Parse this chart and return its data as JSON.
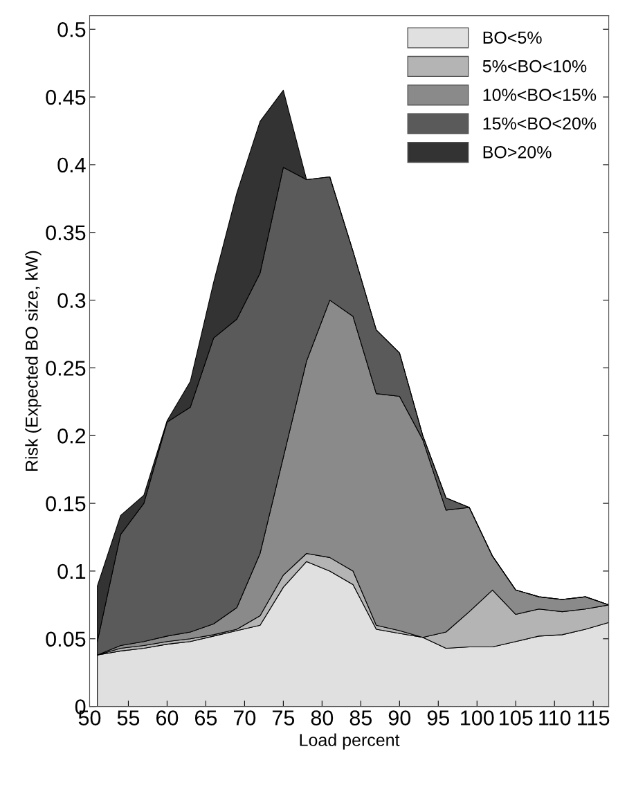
{
  "chart_data": {
    "type": "area",
    "stacked": true,
    "xlabel": "Load percent",
    "ylabel": "Risk (Expected BO size, kW)",
    "x": [
      51,
      54,
      57,
      60,
      63,
      66,
      69,
      72,
      75,
      78,
      81,
      84,
      87,
      90,
      93,
      96,
      99,
      102,
      105,
      108,
      111,
      114,
      117
    ],
    "series": [
      {
        "name": "BO<5%",
        "color": "#e0e0e0",
        "values": [
          0.038,
          0.041,
          0.043,
          0.046,
          0.048,
          0.052,
          0.056,
          0.06,
          0.088,
          0.107,
          0.1,
          0.09,
          0.057,
          0.054,
          0.051,
          0.043,
          0.044,
          0.044,
          0.048,
          0.052,
          0.053,
          0.057,
          0.062
        ]
      },
      {
        "name": "5%<BO<10%",
        "color": "#b4b4b4",
        "values": [
          0,
          0.002,
          0.002,
          0.002,
          0.002,
          0.001,
          0.001,
          0.007,
          0.009,
          0.006,
          0.01,
          0.01,
          0.003,
          0.002,
          0,
          0.012,
          0.026,
          0.042,
          0.02,
          0.02,
          0.017,
          0.015,
          0.013
        ]
      },
      {
        "name": "10%<BO<15%",
        "color": "#8a8a8a",
        "values": [
          0,
          0.002,
          0.003,
          0.004,
          0.005,
          0.008,
          0.016,
          0.046,
          0.087,
          0.142,
          0.19,
          0.188,
          0.171,
          0.173,
          0.146,
          0.09,
          0.077,
          0.025,
          0.018,
          0.009,
          0.009,
          0.009,
          0
        ]
      },
      {
        "name": "15%<BO<20%",
        "color": "#5a5a5a",
        "values": [
          0.01,
          0.082,
          0.102,
          0.158,
          0.166,
          0.211,
          0.213,
          0.207,
          0.214,
          0.134,
          0.091,
          0.048,
          0.047,
          0.032,
          0.003,
          0.009,
          0,
          0,
          0,
          0,
          0,
          0,
          0
        ]
      },
      {
        "name": "BO>20%",
        "color": "#333333",
        "values": [
          0.041,
          0.014,
          0.006,
          0.001,
          0.019,
          0.041,
          0.093,
          0.112,
          0.057,
          0,
          0,
          0,
          0,
          0,
          0,
          0,
          0,
          0,
          0,
          0,
          0,
          0,
          0
        ]
      }
    ],
    "xlim": [
      50,
      117
    ],
    "xticks": [
      50,
      55,
      60,
      65,
      70,
      75,
      80,
      85,
      90,
      95,
      100,
      105,
      110,
      115
    ],
    "ylim": [
      0,
      0.51
    ],
    "yticks": [
      0,
      0.05,
      0.1,
      0.15,
      0.2,
      0.25,
      0.3,
      0.35,
      0.4,
      0.45,
      0.5
    ],
    "grid": false,
    "legend": "top right"
  }
}
